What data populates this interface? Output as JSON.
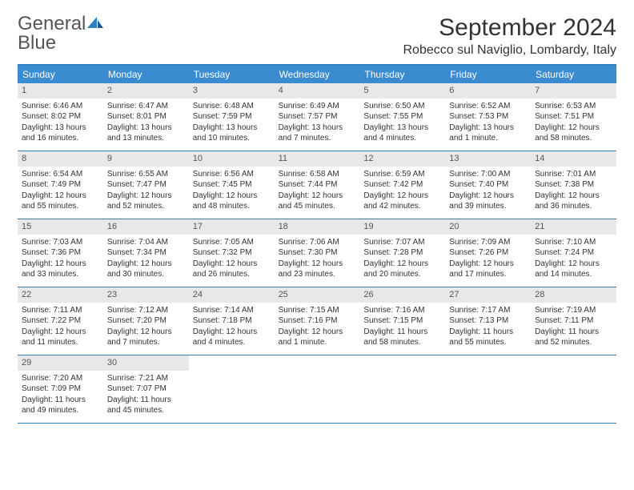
{
  "logo": {
    "text1": "General",
    "text2": "Blue"
  },
  "title": "September 2024",
  "location": "Robecco sul Naviglio, Lombardy, Italy",
  "colors": {
    "header_bg": "#3b8bd0",
    "border": "#2f7fc1",
    "daynum_bg": "#e8e8e8",
    "text": "#333333"
  },
  "day_names": [
    "Sunday",
    "Monday",
    "Tuesday",
    "Wednesday",
    "Thursday",
    "Friday",
    "Saturday"
  ],
  "weeks": [
    [
      {
        "n": "1",
        "sr": "Sunrise: 6:46 AM",
        "ss": "Sunset: 8:02 PM",
        "d1": "Daylight: 13 hours",
        "d2": "and 16 minutes."
      },
      {
        "n": "2",
        "sr": "Sunrise: 6:47 AM",
        "ss": "Sunset: 8:01 PM",
        "d1": "Daylight: 13 hours",
        "d2": "and 13 minutes."
      },
      {
        "n": "3",
        "sr": "Sunrise: 6:48 AM",
        "ss": "Sunset: 7:59 PM",
        "d1": "Daylight: 13 hours",
        "d2": "and 10 minutes."
      },
      {
        "n": "4",
        "sr": "Sunrise: 6:49 AM",
        "ss": "Sunset: 7:57 PM",
        "d1": "Daylight: 13 hours",
        "d2": "and 7 minutes."
      },
      {
        "n": "5",
        "sr": "Sunrise: 6:50 AM",
        "ss": "Sunset: 7:55 PM",
        "d1": "Daylight: 13 hours",
        "d2": "and 4 minutes."
      },
      {
        "n": "6",
        "sr": "Sunrise: 6:52 AM",
        "ss": "Sunset: 7:53 PM",
        "d1": "Daylight: 13 hours",
        "d2": "and 1 minute."
      },
      {
        "n": "7",
        "sr": "Sunrise: 6:53 AM",
        "ss": "Sunset: 7:51 PM",
        "d1": "Daylight: 12 hours",
        "d2": "and 58 minutes."
      }
    ],
    [
      {
        "n": "8",
        "sr": "Sunrise: 6:54 AM",
        "ss": "Sunset: 7:49 PM",
        "d1": "Daylight: 12 hours",
        "d2": "and 55 minutes."
      },
      {
        "n": "9",
        "sr": "Sunrise: 6:55 AM",
        "ss": "Sunset: 7:47 PM",
        "d1": "Daylight: 12 hours",
        "d2": "and 52 minutes."
      },
      {
        "n": "10",
        "sr": "Sunrise: 6:56 AM",
        "ss": "Sunset: 7:45 PM",
        "d1": "Daylight: 12 hours",
        "d2": "and 48 minutes."
      },
      {
        "n": "11",
        "sr": "Sunrise: 6:58 AM",
        "ss": "Sunset: 7:44 PM",
        "d1": "Daylight: 12 hours",
        "d2": "and 45 minutes."
      },
      {
        "n": "12",
        "sr": "Sunrise: 6:59 AM",
        "ss": "Sunset: 7:42 PM",
        "d1": "Daylight: 12 hours",
        "d2": "and 42 minutes."
      },
      {
        "n": "13",
        "sr": "Sunrise: 7:00 AM",
        "ss": "Sunset: 7:40 PM",
        "d1": "Daylight: 12 hours",
        "d2": "and 39 minutes."
      },
      {
        "n": "14",
        "sr": "Sunrise: 7:01 AM",
        "ss": "Sunset: 7:38 PM",
        "d1": "Daylight: 12 hours",
        "d2": "and 36 minutes."
      }
    ],
    [
      {
        "n": "15",
        "sr": "Sunrise: 7:03 AM",
        "ss": "Sunset: 7:36 PM",
        "d1": "Daylight: 12 hours",
        "d2": "and 33 minutes."
      },
      {
        "n": "16",
        "sr": "Sunrise: 7:04 AM",
        "ss": "Sunset: 7:34 PM",
        "d1": "Daylight: 12 hours",
        "d2": "and 30 minutes."
      },
      {
        "n": "17",
        "sr": "Sunrise: 7:05 AM",
        "ss": "Sunset: 7:32 PM",
        "d1": "Daylight: 12 hours",
        "d2": "and 26 minutes."
      },
      {
        "n": "18",
        "sr": "Sunrise: 7:06 AM",
        "ss": "Sunset: 7:30 PM",
        "d1": "Daylight: 12 hours",
        "d2": "and 23 minutes."
      },
      {
        "n": "19",
        "sr": "Sunrise: 7:07 AM",
        "ss": "Sunset: 7:28 PM",
        "d1": "Daylight: 12 hours",
        "d2": "and 20 minutes."
      },
      {
        "n": "20",
        "sr": "Sunrise: 7:09 AM",
        "ss": "Sunset: 7:26 PM",
        "d1": "Daylight: 12 hours",
        "d2": "and 17 minutes."
      },
      {
        "n": "21",
        "sr": "Sunrise: 7:10 AM",
        "ss": "Sunset: 7:24 PM",
        "d1": "Daylight: 12 hours",
        "d2": "and 14 minutes."
      }
    ],
    [
      {
        "n": "22",
        "sr": "Sunrise: 7:11 AM",
        "ss": "Sunset: 7:22 PM",
        "d1": "Daylight: 12 hours",
        "d2": "and 11 minutes."
      },
      {
        "n": "23",
        "sr": "Sunrise: 7:12 AM",
        "ss": "Sunset: 7:20 PM",
        "d1": "Daylight: 12 hours",
        "d2": "and 7 minutes."
      },
      {
        "n": "24",
        "sr": "Sunrise: 7:14 AM",
        "ss": "Sunset: 7:18 PM",
        "d1": "Daylight: 12 hours",
        "d2": "and 4 minutes."
      },
      {
        "n": "25",
        "sr": "Sunrise: 7:15 AM",
        "ss": "Sunset: 7:16 PM",
        "d1": "Daylight: 12 hours",
        "d2": "and 1 minute."
      },
      {
        "n": "26",
        "sr": "Sunrise: 7:16 AM",
        "ss": "Sunset: 7:15 PM",
        "d1": "Daylight: 11 hours",
        "d2": "and 58 minutes."
      },
      {
        "n": "27",
        "sr": "Sunrise: 7:17 AM",
        "ss": "Sunset: 7:13 PM",
        "d1": "Daylight: 11 hours",
        "d2": "and 55 minutes."
      },
      {
        "n": "28",
        "sr": "Sunrise: 7:19 AM",
        "ss": "Sunset: 7:11 PM",
        "d1": "Daylight: 11 hours",
        "d2": "and 52 minutes."
      }
    ],
    [
      {
        "n": "29",
        "sr": "Sunrise: 7:20 AM",
        "ss": "Sunset: 7:09 PM",
        "d1": "Daylight: 11 hours",
        "d2": "and 49 minutes."
      },
      {
        "n": "30",
        "sr": "Sunrise: 7:21 AM",
        "ss": "Sunset: 7:07 PM",
        "d1": "Daylight: 11 hours",
        "d2": "and 45 minutes."
      },
      null,
      null,
      null,
      null,
      null
    ]
  ]
}
